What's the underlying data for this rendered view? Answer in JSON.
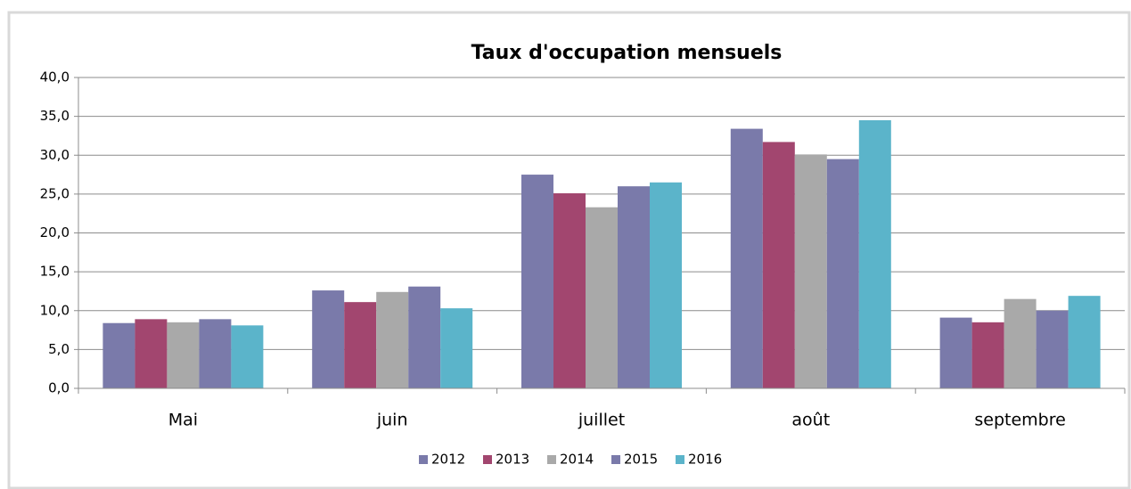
{
  "chart_data": {
    "type": "bar",
    "title": "Taux d'occupation mensuels",
    "categories": [
      "Mai",
      "juin",
      "juillet",
      "août",
      "septembre"
    ],
    "series": [
      {
        "name": "2012",
        "color": "#7a7aaa",
        "values": [
          8.4,
          12.6,
          27.5,
          33.4,
          9.1
        ]
      },
      {
        "name": "2013",
        "color": "#a2466f",
        "values": [
          8.9,
          11.1,
          25.1,
          31.7,
          8.5
        ]
      },
      {
        "name": "2014",
        "color": "#a9a9a9",
        "values": [
          8.5,
          12.4,
          23.3,
          30.1,
          11.5
        ]
      },
      {
        "name": "2015",
        "color": "#7a7aaa",
        "values": [
          8.9,
          13.1,
          26.0,
          29.5,
          10.0
        ]
      },
      {
        "name": "2016",
        "color": "#5bb4ca",
        "values": [
          8.1,
          10.3,
          26.5,
          34.5,
          11.9
        ]
      }
    ],
    "ylim": [
      0,
      40
    ],
    "yticks": [
      {
        "value": 0,
        "label": "0,0"
      },
      {
        "value": 5,
        "label": "5,0"
      },
      {
        "value": 10,
        "label": "10,0"
      },
      {
        "value": 15,
        "label": "15,0"
      },
      {
        "value": 20,
        "label": "20,0"
      },
      {
        "value": 25,
        "label": "25,0"
      },
      {
        "value": 30,
        "label": "30,0"
      },
      {
        "value": 35,
        "label": "35,0"
      },
      {
        "value": 40,
        "label": "40,0"
      }
    ],
    "grid": true,
    "legend": "bottom"
  }
}
